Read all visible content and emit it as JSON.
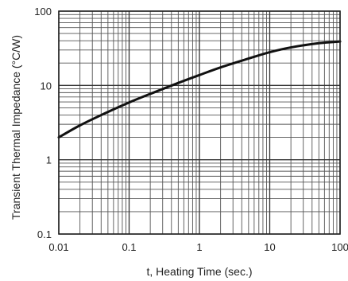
{
  "chart_data": {
    "type": "line",
    "title": "",
    "xlabel": "t, Heating Time (sec.)",
    "ylabel": "Transient Thermal Impedance (°C/W)",
    "x_scale": "log",
    "y_scale": "log",
    "xlim": [
      0.01,
      100
    ],
    "ylim": [
      0.1,
      100
    ],
    "x_ticks": [
      {
        "value": 0.01,
        "label": "0.01"
      },
      {
        "value": 0.1,
        "label": "0.1"
      },
      {
        "value": 1,
        "label": "1"
      },
      {
        "value": 10,
        "label": "10"
      },
      {
        "value": 100,
        "label": "100"
      }
    ],
    "y_ticks": [
      {
        "value": 0.1,
        "label": "0.1"
      },
      {
        "value": 1,
        "label": "1"
      },
      {
        "value": 10,
        "label": "10"
      },
      {
        "value": 100,
        "label": "100"
      }
    ],
    "grid": true,
    "legend": "none",
    "colors": {
      "line": "#111111",
      "grid": "#555555",
      "frame": "#222222"
    },
    "series": [
      {
        "x": [
          0.01,
          0.02,
          0.05,
          0.1,
          0.2,
          0.5,
          1,
          2,
          5,
          10,
          20,
          50,
          100
        ],
        "y": [
          2.0,
          2.9,
          4.4,
          5.9,
          7.7,
          10.8,
          13.8,
          17.5,
          23,
          28,
          32.5,
          37,
          39
        ]
      }
    ]
  }
}
